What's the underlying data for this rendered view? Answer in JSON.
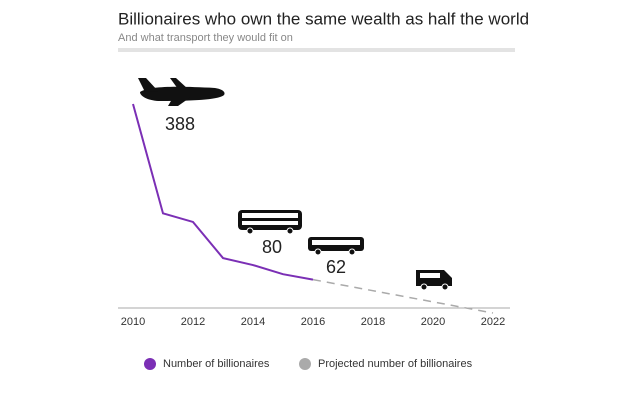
{
  "chart_data": {
    "type": "line",
    "title": "Billionaires who own the same wealth as half the world",
    "subtitle": "And what transport they would fit on",
    "xlim": [
      2010,
      2022
    ],
    "xticks": [
      2010,
      2012,
      2014,
      2016,
      2018,
      2020,
      2022
    ],
    "ylim": [
      0,
      400
    ],
    "series": [
      {
        "name": "Number of billionaires",
        "color": "#7b2fb5",
        "linestyle": "solid",
        "x": [
          2010,
          2011,
          2012,
          2013,
          2014,
          2015,
          2016
        ],
        "values": [
          388,
          185,
          169,
          102,
          89,
          72,
          62
        ]
      },
      {
        "name": "Projected number of billionaires",
        "color": "#aaaaaa",
        "linestyle": "dashed",
        "x": [
          2016,
          2022
        ],
        "values": [
          62,
          0
        ]
      }
    ],
    "annotations": [
      "388",
      "80",
      "62"
    ]
  }
}
